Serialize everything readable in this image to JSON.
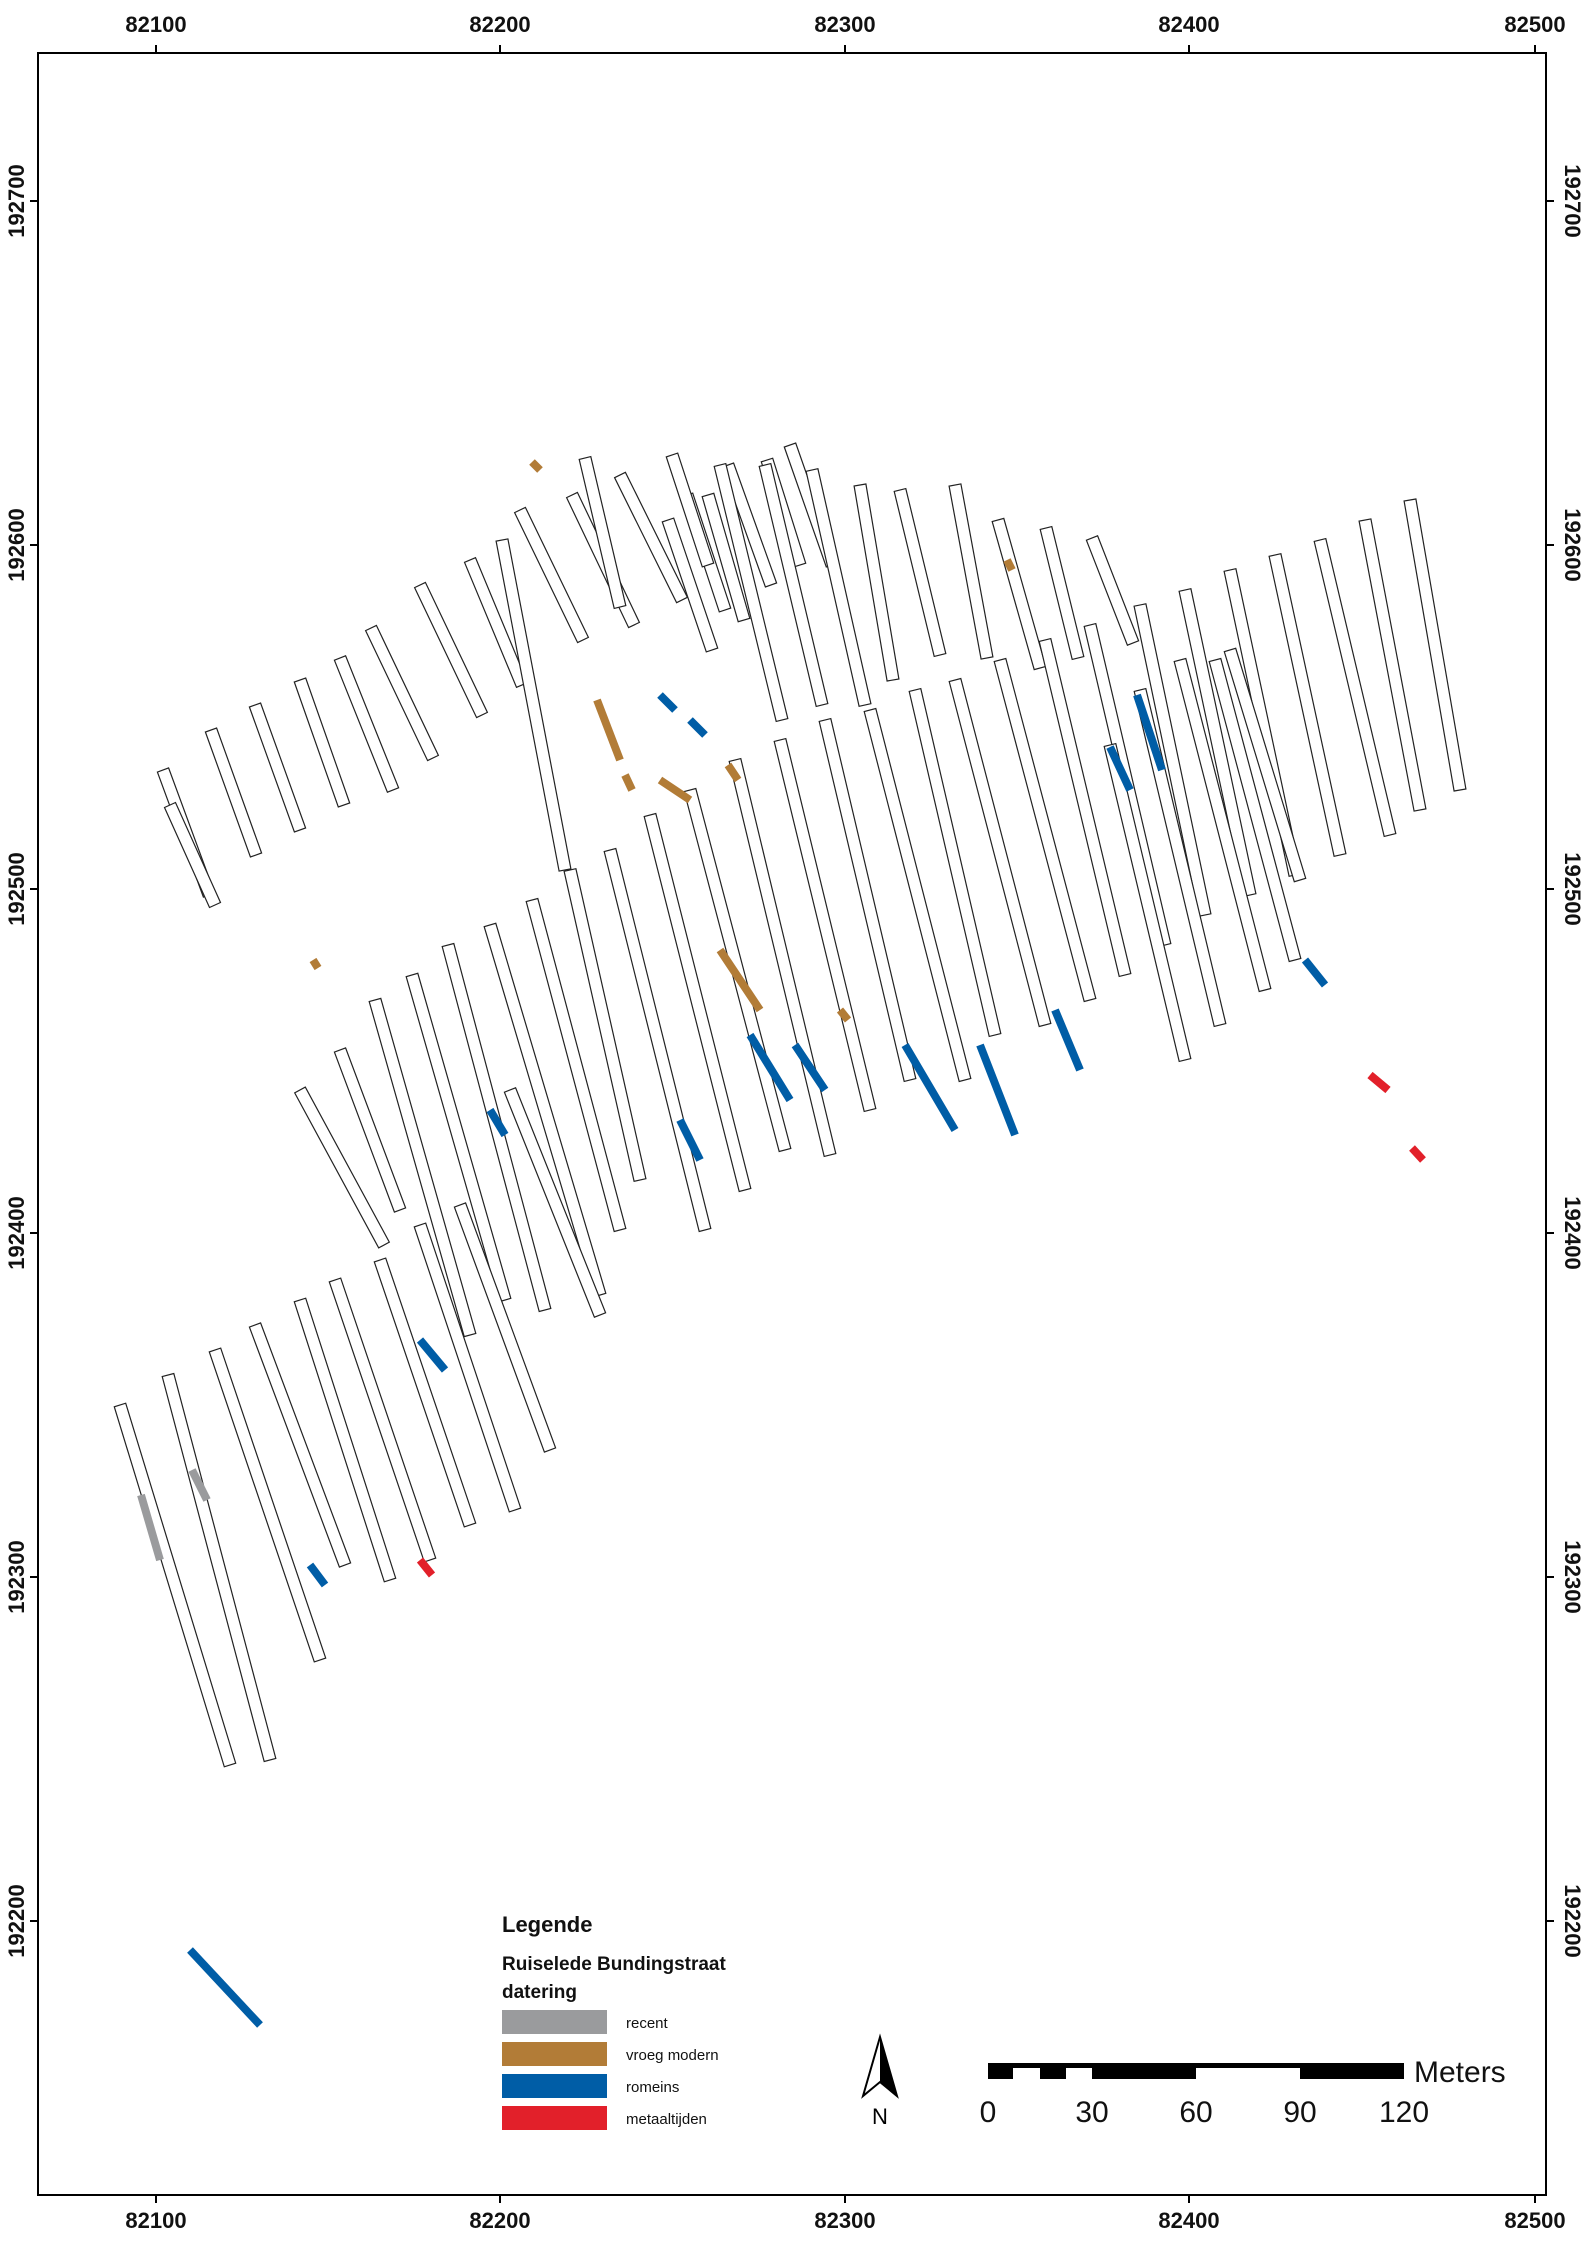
{
  "map": {
    "x_ticks": [
      "82100",
      "82200",
      "82300",
      "82400",
      "82500"
    ],
    "y_ticks": [
      "192700",
      "192600",
      "192500",
      "192400",
      "192300",
      "192200"
    ]
  },
  "legend": {
    "title": "Legende",
    "subtitle": "Ruiselede Bundingstraat",
    "field": "datering",
    "items": [
      {
        "label": "recent",
        "color": "#9a9b9d"
      },
      {
        "label": "vroeg modern",
        "color": "#b27c37"
      },
      {
        "label": "romeins",
        "color": "#005da6"
      },
      {
        "label": "metaaltijden",
        "color": "#e2202a"
      }
    ]
  },
  "north_arrow": {
    "label": "N"
  },
  "scale_bar": {
    "unit": "Meters",
    "labels": [
      "0",
      "30",
      "60",
      "90",
      "120"
    ]
  },
  "colors": {
    "trench_outline": "#222222",
    "trench_fill": "#ffffff",
    "frame": "#000000"
  }
}
